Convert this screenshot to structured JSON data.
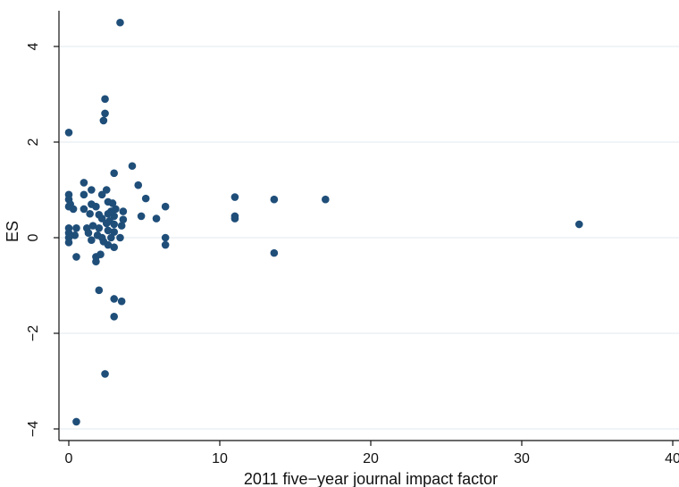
{
  "chart_data": {
    "type": "scatter",
    "title": "",
    "xlabel": "2011 five−year journal impact factor",
    "ylabel": "ES",
    "xlim": [
      0,
      40
    ],
    "ylim": [
      -4,
      4.5
    ],
    "x_ticks": [
      0,
      10,
      20,
      30,
      40
    ],
    "y_ticks": [
      -4,
      -2,
      0,
      2,
      4
    ],
    "x_tick_labels": [
      "0",
      "10",
      "20",
      "30",
      "40"
    ],
    "y_tick_labels": [
      "−4",
      "−2",
      "0",
      "2",
      "4"
    ],
    "grid": "horizontal",
    "legend": "none",
    "marker_color": "#1f4e79",
    "grid_color": "#e6eef2",
    "points": [
      [
        3.4,
        4.5
      ],
      [
        2.4,
        2.9
      ],
      [
        2.4,
        2.6
      ],
      [
        2.3,
        2.45
      ],
      [
        0.0,
        2.2
      ],
      [
        4.2,
        1.5
      ],
      [
        3.0,
        1.35
      ],
      [
        4.6,
        1.1
      ],
      [
        1.0,
        1.15
      ],
      [
        0.0,
        0.9
      ],
      [
        1.0,
        0.9
      ],
      [
        1.5,
        1.0
      ],
      [
        2.5,
        1.0
      ],
      [
        5.1,
        0.82
      ],
      [
        11.0,
        0.85
      ],
      [
        13.6,
        0.8
      ],
      [
        17.0,
        0.8
      ],
      [
        0.0,
        0.8
      ],
      [
        0.1,
        0.7
      ],
      [
        0.0,
        0.65
      ],
      [
        0.3,
        0.6
      ],
      [
        1.0,
        0.6
      ],
      [
        1.5,
        0.7
      ],
      [
        1.8,
        0.65
      ],
      [
        2.2,
        0.9
      ],
      [
        2.6,
        0.75
      ],
      [
        2.9,
        0.72
      ],
      [
        3.1,
        0.6
      ],
      [
        3.6,
        0.55
      ],
      [
        6.4,
        0.65
      ],
      [
        2.8,
        0.55
      ],
      [
        1.4,
        0.5
      ],
      [
        2.0,
        0.48
      ],
      [
        2.6,
        0.5
      ],
      [
        3.0,
        0.45
      ],
      [
        4.8,
        0.45
      ],
      [
        5.8,
        0.4
      ],
      [
        11.0,
        0.45
      ],
      [
        11.0,
        0.4
      ],
      [
        2.2,
        0.4
      ],
      [
        2.7,
        0.35
      ],
      [
        3.6,
        0.38
      ],
      [
        2.5,
        0.3
      ],
      [
        3.0,
        0.28
      ],
      [
        3.5,
        0.25
      ],
      [
        33.8,
        0.28
      ],
      [
        0.0,
        0.2
      ],
      [
        0.5,
        0.2
      ],
      [
        1.2,
        0.2
      ],
      [
        1.6,
        0.25
      ],
      [
        2.0,
        0.2
      ],
      [
        2.6,
        0.15
      ],
      [
        3.0,
        0.12
      ],
      [
        0.0,
        0.1
      ],
      [
        0.4,
        0.05
      ],
      [
        1.3,
        0.1
      ],
      [
        1.9,
        0.05
      ],
      [
        2.2,
        0.0
      ],
      [
        2.8,
        0.0
      ],
      [
        3.4,
        0.0
      ],
      [
        0.0,
        0.0
      ],
      [
        6.4,
        0.0
      ],
      [
        0.0,
        -0.1
      ],
      [
        1.5,
        -0.05
      ],
      [
        2.3,
        -0.08
      ],
      [
        2.6,
        -0.15
      ],
      [
        3.0,
        -0.2
      ],
      [
        6.4,
        -0.15
      ],
      [
        0.5,
        -0.4
      ],
      [
        1.8,
        -0.4
      ],
      [
        2.1,
        -0.35
      ],
      [
        1.8,
        -0.5
      ],
      [
        13.6,
        -0.32
      ],
      [
        2.0,
        -1.1
      ],
      [
        3.0,
        -1.28
      ],
      [
        3.5,
        -1.33
      ],
      [
        3.0,
        -1.65
      ],
      [
        2.4,
        -2.85
      ],
      [
        0.5,
        -3.85
      ]
    ]
  }
}
